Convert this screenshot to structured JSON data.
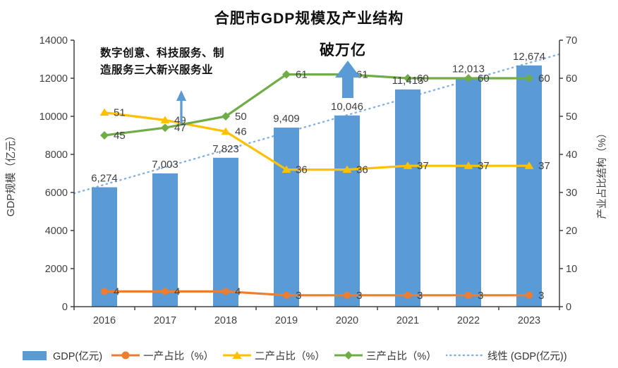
{
  "title": "合肥市GDP规模及产业结构",
  "chart_data": {
    "type": "combo (bar + line, dual axis)",
    "categories": [
      "2016",
      "2017",
      "2018",
      "2019",
      "2020",
      "2021",
      "2022",
      "2023"
    ],
    "series": [
      {
        "name": "GDP(亿元)",
        "kind": "bar",
        "axis": "left",
        "color": "#5B9BD5",
        "values": [
          6274,
          7003,
          7823,
          9409,
          10046,
          11413,
          12013,
          12674
        ],
        "labels": [
          "6,274",
          "7,003",
          "7,823",
          "9,409",
          "10,046",
          "11,413",
          "12,013",
          "12,674"
        ]
      },
      {
        "name": "一产占比（%）",
        "kind": "line",
        "marker": "circle",
        "axis": "right",
        "color": "#ED7D31",
        "values": [
          4,
          4,
          4,
          3,
          3,
          3,
          3,
          3
        ],
        "labels": [
          "4",
          "4",
          "4",
          "3",
          "3",
          "3",
          "3",
          "3"
        ]
      },
      {
        "name": "二产占比（%）",
        "kind": "line",
        "marker": "triangle",
        "axis": "right",
        "color": "#FFC000",
        "values": [
          51,
          49,
          46,
          36,
          36,
          37,
          37,
          37
        ],
        "labels": [
          "51",
          "49",
          "46",
          "36",
          "36",
          "37",
          "37",
          "37"
        ]
      },
      {
        "name": "三产占比（%）",
        "kind": "line",
        "marker": "diamond",
        "axis": "right",
        "color": "#70AD47",
        "values": [
          45,
          47,
          50,
          61,
          61,
          60,
          60,
          60
        ],
        "labels": [
          "45",
          "47",
          "50",
          "61",
          "61",
          "60",
          "60",
          "60"
        ]
      },
      {
        "name": "线性 (GDP(亿元))",
        "kind": "trend",
        "axis": "left",
        "color": "#84AFDE",
        "style": "dotted",
        "endpoints": [
          5954,
          13265
        ]
      }
    ],
    "left_axis": {
      "title": "GDP规模（亿元）",
      "min": 0,
      "max": 14000,
      "step": 2000,
      "ticks": [
        "0",
        "2000",
        "4000",
        "6000",
        "8000",
        "10000",
        "12000",
        "14000"
      ]
    },
    "right_axis": {
      "title": "产业占比结构（%）",
      "min": 0,
      "max": 70,
      "step": 10,
      "ticks": [
        "0",
        "10",
        "20",
        "30",
        "40",
        "50",
        "60",
        "70"
      ]
    },
    "grid": "off",
    "legend_position": "bottom"
  },
  "annotations": {
    "services_note": {
      "text": "数字创意、科技服务、制\n造服务三大新兴服务业",
      "arrow": "thin-blue-up"
    },
    "trillion_note": {
      "text": "破万亿",
      "arrow": "big-blue-up"
    }
  },
  "legend": [
    {
      "label": "GDP(亿元)",
      "swatch": "bar",
      "color": "#5B9BD5"
    },
    {
      "label": "一产占比（%）",
      "swatch": "line-circle",
      "color": "#ED7D31"
    },
    {
      "label": "二产占比（%）",
      "swatch": "line-triangle",
      "color": "#FFC000"
    },
    {
      "label": "三产占比（%）",
      "swatch": "line-diamond",
      "color": "#70AD47"
    },
    {
      "label": "线性 (GDP(亿元))",
      "swatch": "dotted",
      "color": "#84AFDE"
    }
  ]
}
